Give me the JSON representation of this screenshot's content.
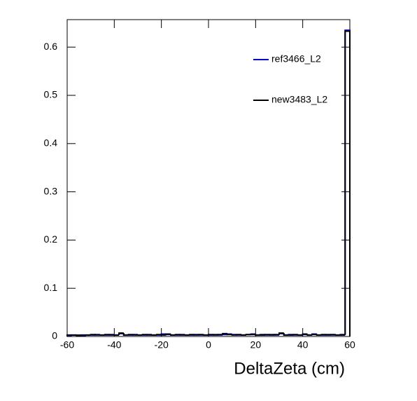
{
  "chart_data": {
    "type": "histogram",
    "xlabel": "DeltaZeta (cm)",
    "bins": [
      -60,
      -58,
      -56,
      -54,
      -52,
      -50,
      -48,
      -46,
      -44,
      -42,
      -40,
      -38,
      -36,
      -34,
      -32,
      -30,
      -28,
      -26,
      -24,
      -22,
      -20,
      -18,
      -16,
      -14,
      -12,
      -10,
      -8,
      -6,
      -4,
      -2,
      0,
      2,
      4,
      6,
      8,
      10,
      12,
      14,
      16,
      18,
      20,
      22,
      24,
      26,
      28,
      30,
      32,
      34,
      36,
      38,
      40,
      42,
      44,
      46,
      48,
      50,
      52,
      54,
      56,
      58,
      60
    ],
    "series": [
      {
        "name": "ref3466_L2",
        "color": "#0000cc",
        "values": [
          0.002,
          0.003,
          0.003,
          0.002,
          0.003,
          0.003,
          0.004,
          0.003,
          0.003,
          0.004,
          0.003,
          0.006,
          0.003,
          0.003,
          0.004,
          0.003,
          0.003,
          0.004,
          0.003,
          0.003,
          0.005,
          0.004,
          0.003,
          0.003,
          0.004,
          0.003,
          0.003,
          0.004,
          0.003,
          0.003,
          0.003,
          0.004,
          0.003,
          0.004,
          0.005,
          0.004,
          0.003,
          0.003,
          0.004,
          0.005,
          0.003,
          0.004,
          0.003,
          0.004,
          0.003,
          0.006,
          0.003,
          0.004,
          0.003,
          0.003,
          0.004,
          0.003,
          0.005,
          0.003,
          0.003,
          0.004,
          0.003,
          0.003,
          0.004,
          0.635
        ]
      },
      {
        "name": "new3483_L2",
        "color": "#000000",
        "values": [
          0.003,
          0.003,
          0.002,
          0.003,
          0.003,
          0.004,
          0.003,
          0.003,
          0.004,
          0.003,
          0.003,
          0.007,
          0.003,
          0.004,
          0.003,
          0.003,
          0.004,
          0.003,
          0.003,
          0.004,
          0.003,
          0.005,
          0.003,
          0.004,
          0.003,
          0.003,
          0.004,
          0.003,
          0.004,
          0.003,
          0.004,
          0.003,
          0.004,
          0.006,
          0.004,
          0.003,
          0.004,
          0.003,
          0.004,
          0.004,
          0.003,
          0.003,
          0.004,
          0.003,
          0.004,
          0.007,
          0.003,
          0.003,
          0.004,
          0.003,
          0.005,
          0.003,
          0.004,
          0.003,
          0.004,
          0.003,
          0.004,
          0.003,
          0.003,
          0.633
        ]
      }
    ],
    "xlim": [
      -60,
      60
    ],
    "xticks": [
      -60,
      -40,
      -20,
      0,
      20,
      40,
      60
    ],
    "ylim": [
      0,
      0.657
    ],
    "yticks": [
      0,
      0.1,
      0.2,
      0.3,
      0.4,
      0.5,
      0.6
    ],
    "grid": false
  }
}
